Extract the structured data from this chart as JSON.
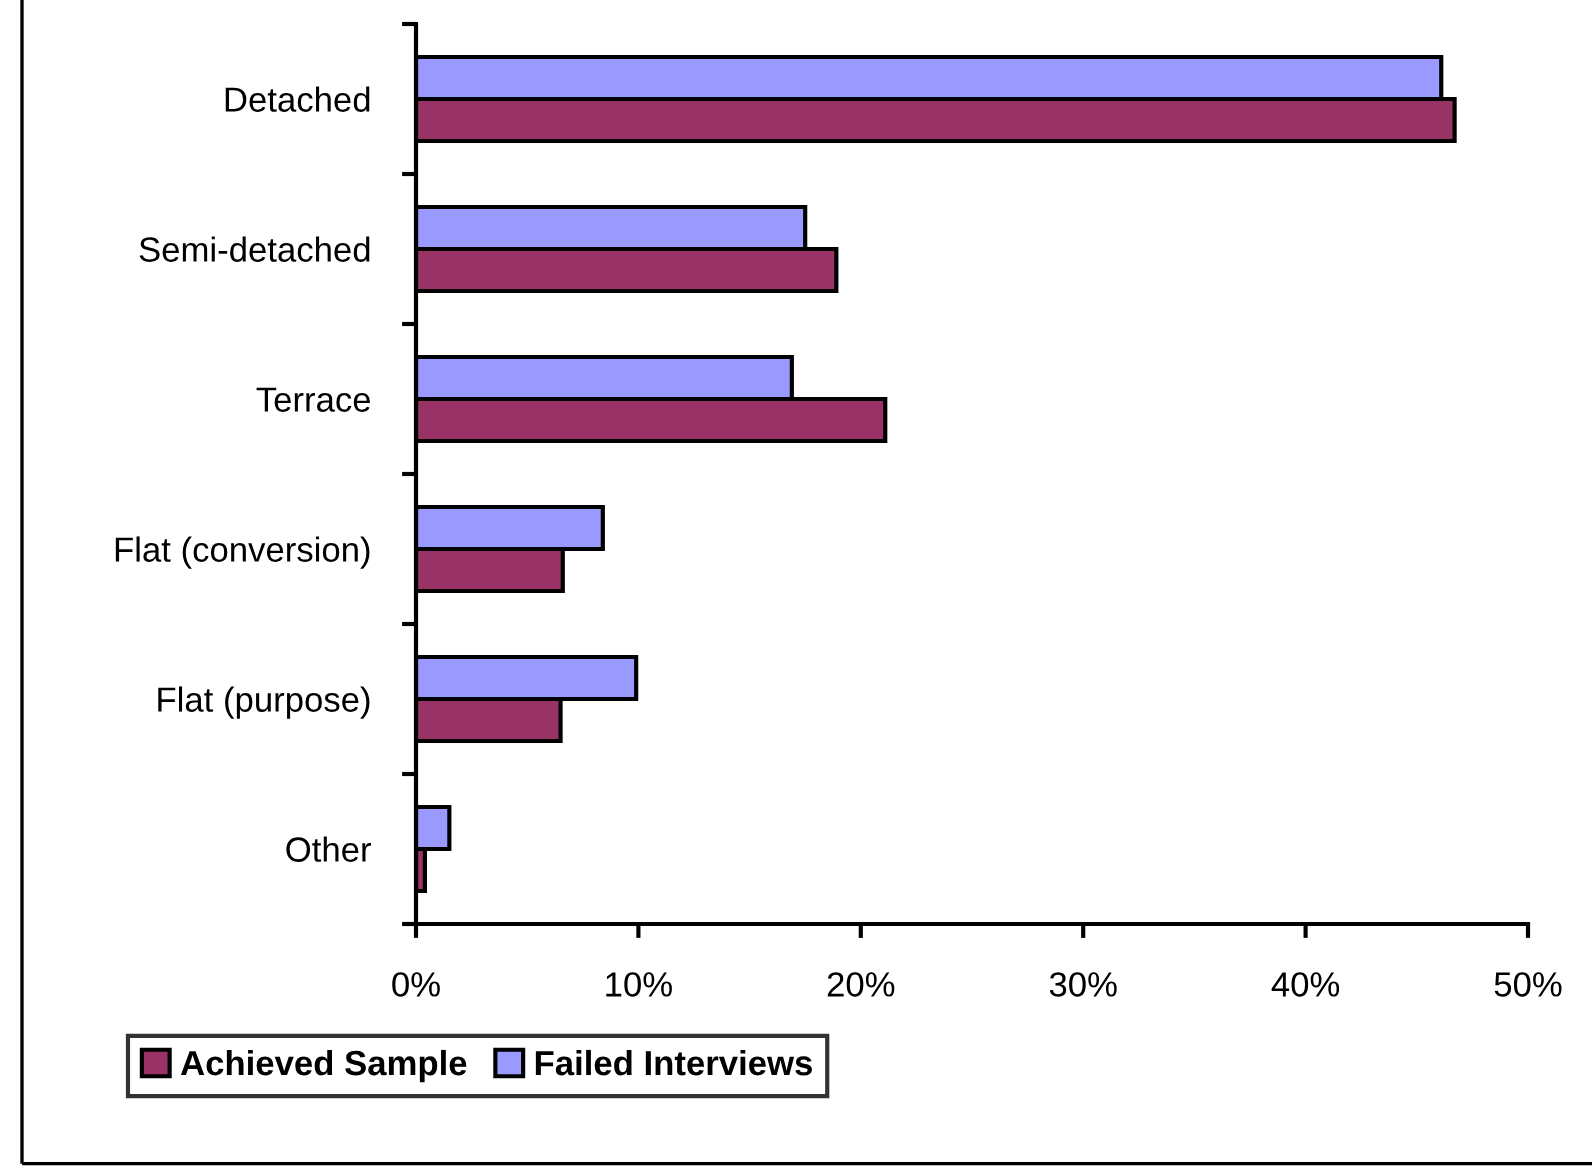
{
  "chart_data": {
    "type": "bar",
    "orientation": "horizontal",
    "categories": [
      "Detached",
      "Semi-detached",
      "Terrace",
      "Flat (conversion)",
      "Flat (purpose)",
      "Other"
    ],
    "series": [
      {
        "name": "Achieved Sample",
        "color": "#993366",
        "values": [
          46.7,
          18.9,
          21.1,
          6.6,
          6.5,
          0.4
        ]
      },
      {
        "name": "Failed Interviews",
        "color": "#9999ff",
        "values": [
          46.1,
          17.5,
          16.9,
          8.4,
          9.9,
          1.5
        ]
      }
    ],
    "xlim": [
      0,
      50
    ],
    "xticks": [
      {
        "value": 0,
        "label": "0%"
      },
      {
        "value": 10,
        "label": "10%"
      },
      {
        "value": 20,
        "label": "20%"
      },
      {
        "value": 30,
        "label": "30%"
      },
      {
        "value": 40,
        "label": "40%"
      },
      {
        "value": 50,
        "label": "50%"
      }
    ],
    "grid": false,
    "legend": "bottom"
  }
}
